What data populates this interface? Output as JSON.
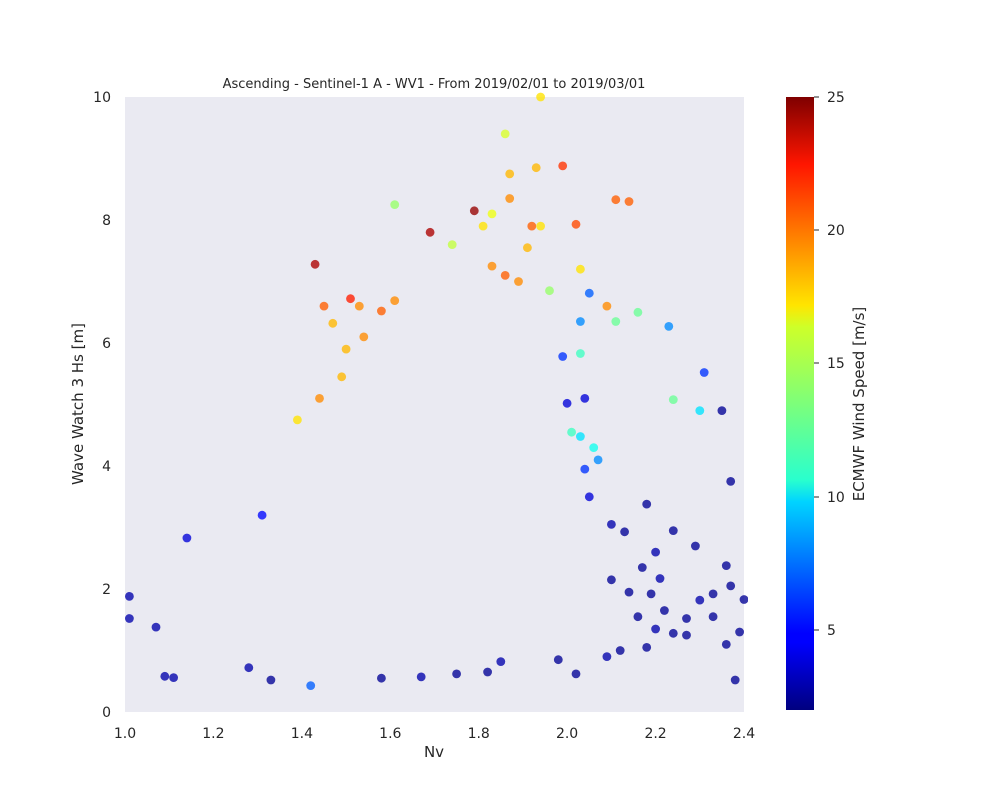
{
  "chart_data": {
    "type": "scatter",
    "title": "Ascending - Sentinel-1 A - WV1 - From 2019/02/01 to 2019/03/01",
    "xlabel": "Nv",
    "ylabel": "Wave Watch 3 Hs [m]",
    "xlim": [
      1.0,
      2.4
    ],
    "ylim": [
      0,
      10
    ],
    "xticks": [
      "1.0",
      "1.2",
      "1.4",
      "1.6",
      "1.8",
      "2.0",
      "2.2",
      "2.4"
    ],
    "yticks": [
      "0",
      "2",
      "4",
      "6",
      "8",
      "10"
    ],
    "grid": false,
    "background": "#eaeaf2",
    "colormap": "jet",
    "colorbar": {
      "label": "ECMWF Wind Speed [m/s]",
      "range": [
        2,
        25
      ],
      "ticks": [
        "5",
        "10",
        "15",
        "20",
        "25"
      ]
    },
    "columns": [
      "x",
      "y",
      "wind_speed"
    ],
    "points": [
      [
        1.43,
        7.28,
        24
      ],
      [
        1.69,
        7.8,
        24
      ],
      [
        1.79,
        8.15,
        24.5
      ],
      [
        1.99,
        8.88,
        21
      ],
      [
        2.11,
        8.33,
        20
      ],
      [
        2.14,
        8.3,
        20
      ],
      [
        1.94,
        10.0,
        17
      ],
      [
        1.86,
        9.4,
        15.5
      ],
      [
        1.87,
        8.75,
        18
      ],
      [
        1.93,
        8.85,
        18
      ],
      [
        1.87,
        8.35,
        19
      ],
      [
        1.92,
        7.9,
        20
      ],
      [
        2.02,
        7.93,
        20.5
      ],
      [
        1.94,
        7.9,
        17
      ],
      [
        1.81,
        7.9,
        17
      ],
      [
        1.83,
        8.1,
        16
      ],
      [
        1.61,
        8.25,
        14
      ],
      [
        1.45,
        6.6,
        20
      ],
      [
        1.51,
        6.72,
        21.5
      ],
      [
        1.53,
        6.6,
        19
      ],
      [
        1.58,
        6.52,
        20
      ],
      [
        1.61,
        6.69,
        19
      ],
      [
        1.47,
        6.32,
        18
      ],
      [
        1.54,
        6.1,
        19
      ],
      [
        1.5,
        5.9,
        18
      ],
      [
        1.49,
        5.45,
        18
      ],
      [
        1.44,
        5.1,
        19
      ],
      [
        1.39,
        4.75,
        17
      ],
      [
        1.89,
        7.0,
        19
      ],
      [
        1.86,
        7.1,
        20
      ],
      [
        1.91,
        7.55,
        18
      ],
      [
        2.03,
        7.2,
        17
      ],
      [
        2.09,
        6.6,
        19
      ],
      [
        1.83,
        7.25,
        19
      ],
      [
        1.96,
        6.85,
        14
      ],
      [
        1.74,
        7.6,
        15
      ],
      [
        2.05,
        6.81,
        7
      ],
      [
        2.03,
        6.35,
        8
      ],
      [
        2.23,
        6.27,
        8
      ],
      [
        2.31,
        5.52,
        6
      ],
      [
        2.0,
        5.02,
        4
      ],
      [
        2.35,
        4.9,
        2.5
      ],
      [
        2.3,
        4.9,
        10
      ],
      [
        2.24,
        5.08,
        13
      ],
      [
        2.16,
        6.5,
        13
      ],
      [
        2.11,
        6.35,
        13
      ],
      [
        2.03,
        5.83,
        12
      ],
      [
        1.99,
        5.78,
        6
      ],
      [
        2.04,
        5.1,
        4
      ],
      [
        2.03,
        4.48,
        10
      ],
      [
        2.01,
        4.55,
        12
      ],
      [
        2.06,
        4.3,
        11
      ],
      [
        2.07,
        4.1,
        8
      ],
      [
        2.04,
        3.95,
        6
      ],
      [
        2.37,
        3.75,
        2.5
      ],
      [
        2.18,
        3.38,
        2.5
      ],
      [
        2.05,
        3.5,
        4
      ],
      [
        2.1,
        3.05,
        3
      ],
      [
        2.13,
        2.93,
        2.5
      ],
      [
        2.2,
        2.6,
        3
      ],
      [
        2.24,
        2.95,
        2.5
      ],
      [
        2.29,
        2.7,
        2.5
      ],
      [
        2.36,
        2.38,
        2.5
      ],
      [
        2.33,
        1.92,
        2.5
      ],
      [
        2.37,
        2.05,
        2.5
      ],
      [
        2.4,
        1.83,
        2.5
      ],
      [
        2.3,
        1.82,
        3
      ],
      [
        2.27,
        1.52,
        2.5
      ],
      [
        2.22,
        1.65,
        2.5
      ],
      [
        2.2,
        1.35,
        3
      ],
      [
        2.24,
        1.28,
        2.5
      ],
      [
        2.16,
        1.55,
        2.5
      ],
      [
        2.17,
        2.35,
        2.5
      ],
      [
        2.21,
        2.17,
        3
      ],
      [
        2.19,
        1.92,
        2.5
      ],
      [
        2.14,
        1.95,
        2.5
      ],
      [
        2.1,
        2.15,
        2.5
      ],
      [
        2.12,
        1.0,
        2.5
      ],
      [
        2.09,
        0.9,
        3
      ],
      [
        2.02,
        0.62,
        2.5
      ],
      [
        1.98,
        0.85,
        2.5
      ],
      [
        2.38,
        0.52,
        2.5
      ],
      [
        2.36,
        1.1,
        2.5
      ],
      [
        2.39,
        1.3,
        2.5
      ],
      [
        2.33,
        1.55,
        2.5
      ],
      [
        2.27,
        1.25,
        2.5
      ],
      [
        2.18,
        1.05,
        2.5
      ],
      [
        1.42,
        0.43,
        7
      ],
      [
        1.33,
        0.52,
        2.5
      ],
      [
        1.58,
        0.55,
        2.5
      ],
      [
        1.67,
        0.57,
        3
      ],
      [
        1.75,
        0.62,
        2.5
      ],
      [
        1.82,
        0.65,
        2.5
      ],
      [
        1.85,
        0.82,
        3
      ],
      [
        1.01,
        1.88,
        3
      ],
      [
        1.01,
        1.52,
        3
      ],
      [
        1.07,
        1.38,
        3
      ],
      [
        1.14,
        2.83,
        4
      ],
      [
        1.31,
        3.2,
        5
      ],
      [
        1.28,
        0.72,
        3
      ],
      [
        1.09,
        0.58,
        3
      ],
      [
        1.11,
        0.56,
        3
      ]
    ]
  }
}
